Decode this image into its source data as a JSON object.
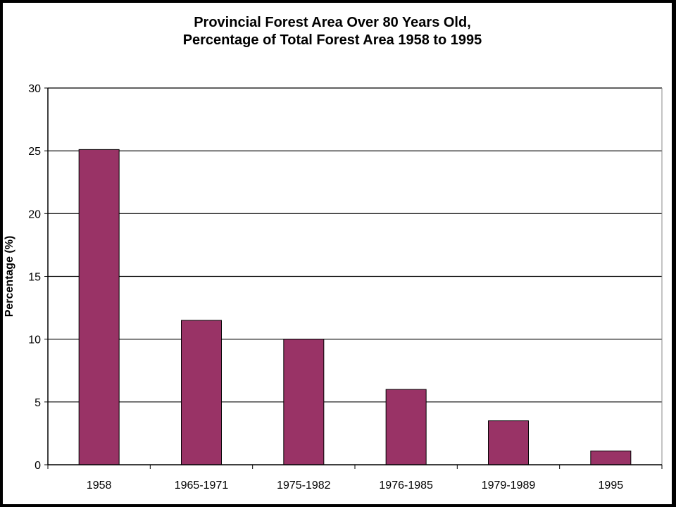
{
  "chart_data": {
    "type": "bar",
    "title_lines": [
      "Provincial Forest Area Over 80 Years Old,",
      "Percentage of Total Forest Area 1958 to 1995"
    ],
    "xlabel": "",
    "ylabel": "Percentage (%)",
    "categories": [
      "1958",
      "1965-1971",
      "1975-1982",
      "1976-1985",
      "1979-1989",
      "1995"
    ],
    "values": [
      25.1,
      11.5,
      10.0,
      6.0,
      3.5,
      1.1
    ],
    "ylim": [
      0,
      30
    ],
    "yticks": [
      0,
      5,
      10,
      15,
      20,
      25,
      30
    ],
    "grid": true,
    "legend": "none",
    "bar_color": "#993366"
  }
}
